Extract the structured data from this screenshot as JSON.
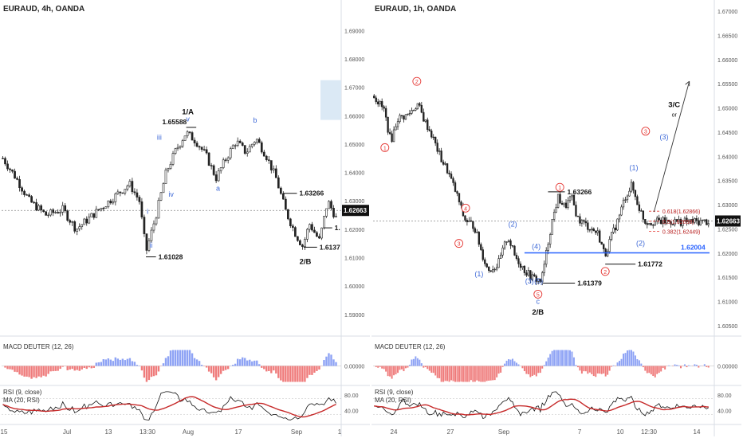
{
  "colors": {
    "candle": "#222222",
    "axis_text": "#555555",
    "grid": "#f3f3f3",
    "divider": "#d8dde6",
    "red_wave": "#e53935",
    "blue_wave": "#3f6ad8",
    "level_blue": "#2962ff",
    "macd_pos": "#8ea3f5",
    "macd_neg": "#ef7b7b",
    "rsi_line": "#111111",
    "rsi_ma": "#c62828",
    "price_label_bg": "#111111",
    "target_box": "#dbe9f5"
  },
  "chart_data": [
    {
      "type": "candlestick",
      "title": "EURAUD, 4h, OANDA",
      "x_ticks": [
        "15",
        "Jul",
        "13",
        "13:30",
        "Aug",
        "17",
        "Sep",
        "1"
      ],
      "y_ticks": [
        "1.69000",
        "1.68000",
        "1.67000",
        "1.66000",
        "1.65000",
        "1.64000",
        "1.63000",
        "1.62000",
        "1.61000",
        "1.60000",
        "1.59000"
      ],
      "ylim": [
        1.5835,
        1.6985
      ],
      "close_path": [
        {
          "t": 0,
          "v": 1.645
        },
        {
          "t": 0.04,
          "v": 1.638
        },
        {
          "t": 0.08,
          "v": 1.63
        },
        {
          "t": 0.13,
          "v": 1.625
        },
        {
          "t": 0.18,
          "v": 1.627
        },
        {
          "t": 0.22,
          "v": 1.62
        },
        {
          "t": 0.26,
          "v": 1.624
        },
        {
          "t": 0.3,
          "v": 1.628
        },
        {
          "t": 0.34,
          "v": 1.632
        },
        {
          "t": 0.38,
          "v": 1.636
        },
        {
          "t": 0.41,
          "v": 1.63
        },
        {
          "t": 0.43,
          "v": 1.612
        },
        {
          "t": 0.46,
          "v": 1.625
        },
        {
          "t": 0.49,
          "v": 1.64
        },
        {
          "t": 0.52,
          "v": 1.648
        },
        {
          "t": 0.55,
          "v": 1.654
        },
        {
          "t": 0.58,
          "v": 1.651
        },
        {
          "t": 0.61,
          "v": 1.646
        },
        {
          "t": 0.64,
          "v": 1.638
        },
        {
          "t": 0.67,
          "v": 1.645
        },
        {
          "t": 0.7,
          "v": 1.651
        },
        {
          "t": 0.73,
          "v": 1.647
        },
        {
          "t": 0.76,
          "v": 1.652
        },
        {
          "t": 0.79,
          "v": 1.646
        },
        {
          "t": 0.82,
          "v": 1.638
        },
        {
          "t": 0.85,
          "v": 1.626
        },
        {
          "t": 0.88,
          "v": 1.618
        },
        {
          "t": 0.9,
          "v": 1.614
        },
        {
          "t": 0.92,
          "v": 1.622
        },
        {
          "t": 0.95,
          "v": 1.616
        },
        {
          "t": 0.975,
          "v": 1.63
        },
        {
          "t": 1,
          "v": 1.624
        }
      ],
      "last_price": "1.62663",
      "levels": [
        {
          "label": "1.65588",
          "value": 1.65588
        },
        {
          "label": "1.63266",
          "value": 1.63266
        },
        {
          "label": "1.61028",
          "value": 1.61028
        },
        {
          "label": "1.6137",
          "value": 1.6137
        },
        {
          "label": "1.",
          "value": 1.6205
        }
      ],
      "wave_labels": [
        {
          "text": "1/A",
          "t": 0.555,
          "v": 1.6605,
          "style": "black"
        },
        {
          "text": "v",
          "t": 0.555,
          "v": 1.658,
          "style": "blue"
        },
        {
          "text": "iii",
          "t": 0.47,
          "v": 1.6515,
          "style": "blue"
        },
        {
          "text": "iv",
          "t": 0.505,
          "v": 1.6315,
          "style": "blue"
        },
        {
          "text": "i",
          "t": 0.435,
          "v": 1.6255,
          "style": "blue"
        },
        {
          "text": "ii",
          "t": 0.445,
          "v": 1.6135,
          "style": "blue"
        },
        {
          "text": "a",
          "t": 0.645,
          "v": 1.6335,
          "style": "blue"
        },
        {
          "text": "b",
          "t": 0.755,
          "v": 1.6575,
          "style": "blue"
        },
        {
          "text": "2/B",
          "t": 0.905,
          "v": 1.6078,
          "style": "black"
        }
      ],
      "indicators": {
        "macd": {
          "title": "MACD DEUTER (12, 26)",
          "y_ticks": [
            "0.00000"
          ]
        },
        "rsi": {
          "title": "RSI (9, close)",
          "ma_title": "MA (20, RSI)",
          "y_ticks": [
            "80.00",
            "40.00"
          ]
        }
      }
    },
    {
      "type": "candlestick",
      "title": "EURAUD, 1h, OANDA",
      "x_ticks": [
        "24",
        "27",
        "Sep",
        "7",
        "10",
        "12:30",
        "14"
      ],
      "y_ticks": [
        "1.67000",
        "1.66500",
        "1.66000",
        "1.65500",
        "1.65000",
        "1.64500",
        "1.64000",
        "1.63500",
        "1.63000",
        "1.62500",
        "1.62000",
        "1.61500",
        "1.61000",
        "1.60500"
      ],
      "ylim": [
        1.6035,
        1.671
      ],
      "close_path": [
        {
          "t": 0,
          "v": 1.6525
        },
        {
          "t": 0.03,
          "v": 1.6495
        },
        {
          "t": 0.05,
          "v": 1.643
        },
        {
          "t": 0.07,
          "v": 1.6478
        },
        {
          "t": 0.1,
          "v": 1.6485
        },
        {
          "t": 0.13,
          "v": 1.6508
        },
        {
          "t": 0.15,
          "v": 1.6475
        },
        {
          "t": 0.17,
          "v": 1.6448
        },
        {
          "t": 0.2,
          "v": 1.6395
        },
        {
          "t": 0.22,
          "v": 1.637
        },
        {
          "t": 0.25,
          "v": 1.6315
        },
        {
          "t": 0.27,
          "v": 1.627
        },
        {
          "t": 0.3,
          "v": 1.6255
        },
        {
          "t": 0.32,
          "v": 1.6205
        },
        {
          "t": 0.34,
          "v": 1.6165
        },
        {
          "t": 0.37,
          "v": 1.6175
        },
        {
          "t": 0.4,
          "v": 1.6235
        },
        {
          "t": 0.42,
          "v": 1.6195
        },
        {
          "t": 0.45,
          "v": 1.6165
        },
        {
          "t": 0.47,
          "v": 1.615
        },
        {
          "t": 0.5,
          "v": 1.6142
        },
        {
          "t": 0.51,
          "v": 1.618
        },
        {
          "t": 0.53,
          "v": 1.626
        },
        {
          "t": 0.55,
          "v": 1.6315
        },
        {
          "t": 0.57,
          "v": 1.6295
        },
        {
          "t": 0.59,
          "v": 1.6315
        },
        {
          "t": 0.61,
          "v": 1.627
        },
        {
          "t": 0.64,
          "v": 1.6255
        },
        {
          "t": 0.67,
          "v": 1.624
        },
        {
          "t": 0.69,
          "v": 1.6195
        },
        {
          "t": 0.71,
          "v": 1.6235
        },
        {
          "t": 0.73,
          "v": 1.627
        },
        {
          "t": 0.75,
          "v": 1.6315
        },
        {
          "t": 0.77,
          "v": 1.634
        },
        {
          "t": 0.79,
          "v": 1.6298
        },
        {
          "t": 0.81,
          "v": 1.6265
        }
      ],
      "last_price": "1.62663",
      "levels": [
        {
          "label": "1.63266",
          "value": 1.63266
        },
        {
          "label": "1.61379",
          "value": 1.61379
        },
        {
          "label": "1.61772",
          "value": 1.61772
        },
        {
          "label": "1.62004",
          "value": 1.62004,
          "style": "blue"
        }
      ],
      "fib_levels": [
        {
          "label": "0.618(1.62866)",
          "value": 1.62866
        },
        {
          "label": "0.5(1.62658)",
          "value": 1.62658
        },
        {
          "label": "0.382(1.62449)",
          "value": 1.62449
        }
      ],
      "wave_labels": [
        {
          "text": "1",
          "t": 0.035,
          "v": 1.6418,
          "style": "red-circle"
        },
        {
          "text": "2",
          "t": 0.13,
          "v": 1.6555,
          "style": "red-circle"
        },
        {
          "text": "4",
          "t": 0.275,
          "v": 1.6293,
          "style": "red-circle"
        },
        {
          "text": "3",
          "t": 0.255,
          "v": 1.622,
          "style": "red-circle"
        },
        {
          "text": "1",
          "t": 0.555,
          "v": 1.6336,
          "style": "red-circle"
        },
        {
          "text": "2",
          "t": 0.69,
          "v": 1.6162,
          "style": "red-circle"
        },
        {
          "text": "5",
          "t": 0.49,
          "v": 1.6115,
          "style": "red-circle"
        },
        {
          "text": "3",
          "t": 0.81,
          "v": 1.6452,
          "style": "red-circle"
        },
        {
          "text": "(1)",
          "t": 0.315,
          "v": 1.6152,
          "style": "blue"
        },
        {
          "text": "(2)",
          "t": 0.415,
          "v": 1.6255,
          "style": "blue"
        },
        {
          "text": "(3)",
          "t": 0.465,
          "v": 1.6137,
          "style": "blue"
        },
        {
          "text": "(4)",
          "t": 0.485,
          "v": 1.6209,
          "style": "blue"
        },
        {
          "text": "(5)",
          "t": 0.492,
          "v": 1.6137,
          "style": "blue"
        },
        {
          "text": "(1)",
          "t": 0.775,
          "v": 1.6372,
          "style": "blue"
        },
        {
          "text": "(2)",
          "t": 0.795,
          "v": 1.6215,
          "style": "blue"
        },
        {
          "text": "(3)",
          "t": 0.865,
          "v": 1.6435,
          "style": "blue"
        },
        {
          "text": "c",
          "t": 0.49,
          "v": 1.6095,
          "style": "blue"
        },
        {
          "text": "2/B",
          "t": 0.49,
          "v": 1.6073,
          "style": "black"
        },
        {
          "text": "3/C",
          "t": 0.895,
          "v": 1.6502,
          "style": "black"
        },
        {
          "text": "or",
          "t": 0.895,
          "v": 1.6482,
          "style": "black-small"
        }
      ],
      "projection": {
        "from": {
          "t": 0.835,
          "v": 1.6285
        },
        "to": {
          "t": 0.94,
          "v": 1.6555
        }
      },
      "indicators": {
        "macd": {
          "title": "MACD DEUTER (12, 26)",
          "y_ticks": [
            "0.00000"
          ]
        },
        "rsi": {
          "title": "RSI (9, close)",
          "ma_title": "MA (20, RSI)",
          "y_ticks": [
            "80.00",
            "40.00"
          ]
        }
      }
    }
  ]
}
